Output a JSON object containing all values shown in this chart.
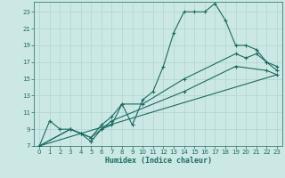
{
  "xlabel": "Humidex (Indice chaleur)",
  "background_color": "#cce8e5",
  "grid_color": "#afd4cf",
  "line_color": "#1a6b60",
  "xlim": [
    -0.5,
    23.5
  ],
  "ylim": [
    7,
    24.2
  ],
  "xticks": [
    0,
    1,
    2,
    3,
    4,
    5,
    6,
    7,
    8,
    9,
    10,
    11,
    12,
    13,
    14,
    15,
    16,
    17,
    18,
    19,
    20,
    21,
    22,
    23
  ],
  "yticks": [
    7,
    9,
    11,
    13,
    15,
    17,
    19,
    21,
    23
  ],
  "line1_x": [
    0,
    1,
    2,
    3,
    4,
    5,
    6,
    7,
    8,
    9,
    10,
    11,
    12,
    13,
    14,
    15,
    16,
    17,
    18,
    19,
    20,
    21,
    22,
    23
  ],
  "line1_y": [
    7,
    10,
    9,
    9,
    8.5,
    7.5,
    9,
    9.5,
    12,
    9.5,
    12.5,
    13.5,
    16.5,
    20.5,
    23,
    23,
    23,
    24,
    22,
    19,
    19,
    18.5,
    17,
    16
  ],
  "line2_x": [
    0,
    3,
    4,
    5,
    6,
    7,
    8,
    10,
    14,
    19,
    20,
    21,
    22,
    23
  ],
  "line2_y": [
    7,
    9,
    8.5,
    8,
    9.5,
    10.5,
    12,
    12,
    15,
    18,
    17.5,
    18,
    17,
    16.5
  ],
  "line3_x": [
    0,
    3,
    5,
    6,
    7,
    14,
    19,
    22,
    23
  ],
  "line3_y": [
    7,
    9,
    8,
    9,
    10,
    13.5,
    16.5,
    16,
    15.5
  ],
  "line4_x": [
    0,
    23
  ],
  "line4_y": [
    7,
    15.5
  ]
}
